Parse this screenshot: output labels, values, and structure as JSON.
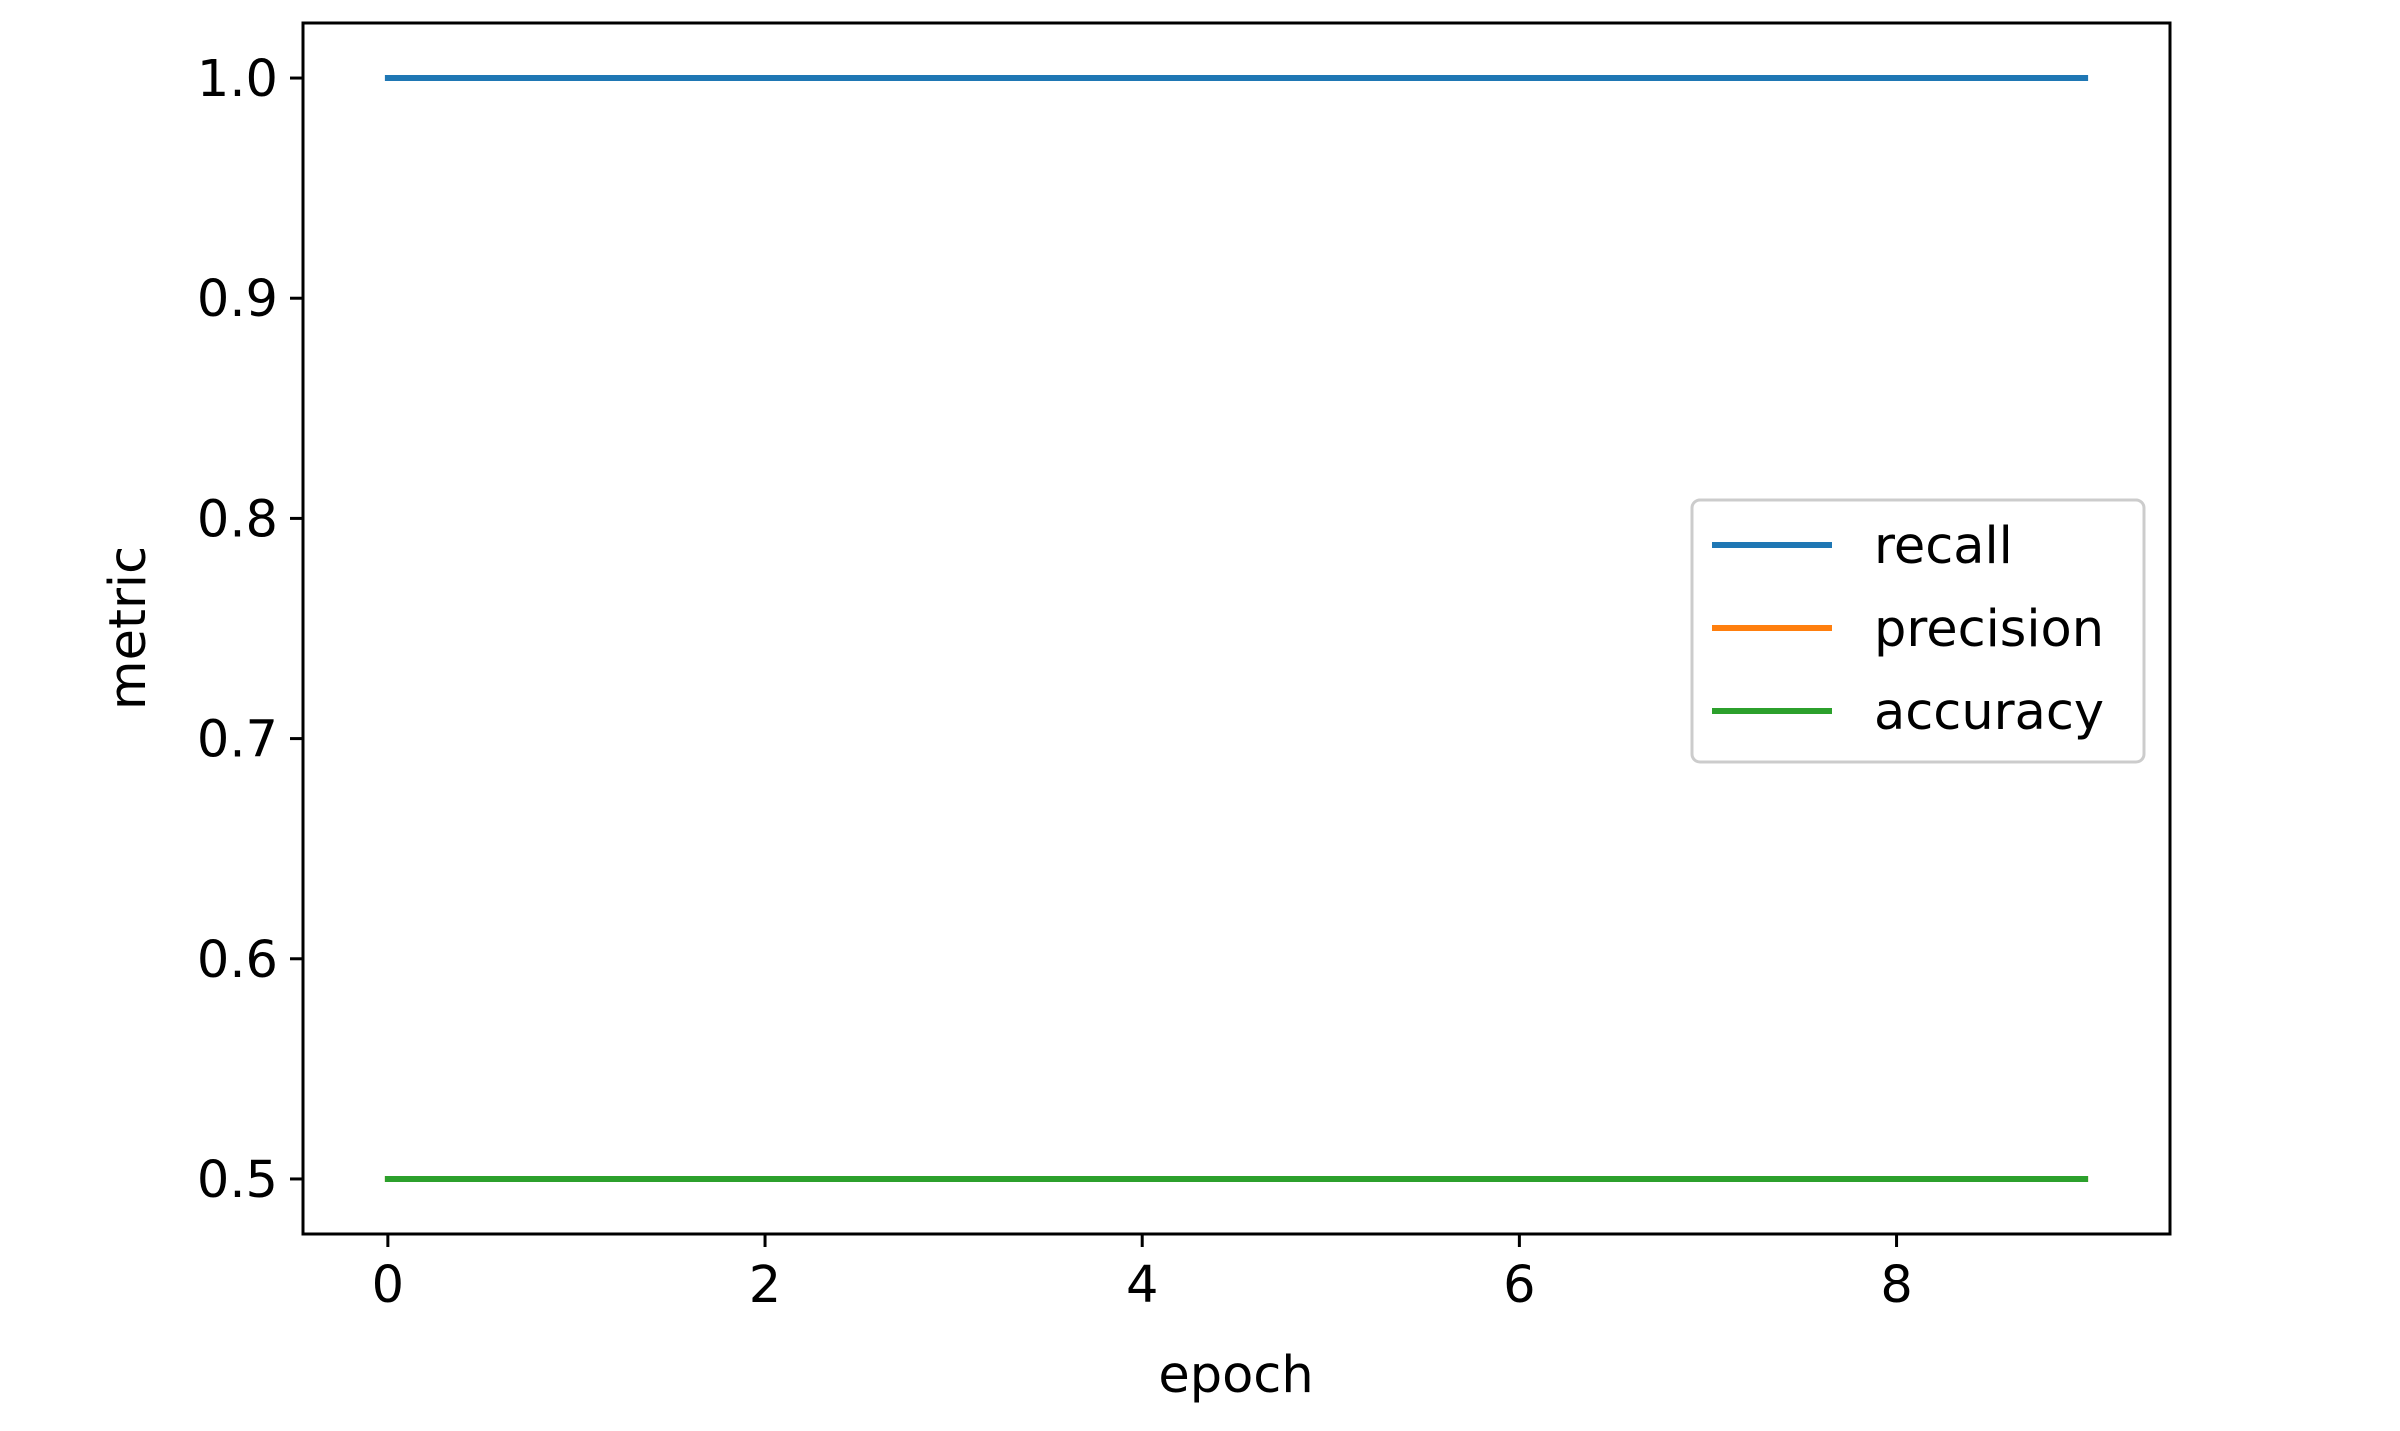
{
  "chart_data": {
    "type": "line",
    "title": "",
    "xlabel": "epoch",
    "ylabel": "metric",
    "x": [
      0,
      1,
      2,
      3,
      4,
      5,
      6,
      7,
      8,
      9
    ],
    "series": [
      {
        "name": "recall",
        "color": "#1f77b4",
        "values": [
          1.0,
          1.0,
          1.0,
          1.0,
          1.0,
          1.0,
          1.0,
          1.0,
          1.0,
          1.0
        ]
      },
      {
        "name": "precision",
        "color": "#ff7f0e",
        "values": [
          0.5,
          0.5,
          0.5,
          0.5,
          0.5,
          0.5,
          0.5,
          0.5,
          0.5,
          0.5
        ]
      },
      {
        "name": "accuracy",
        "color": "#2ca02c",
        "values": [
          0.5,
          0.5,
          0.5,
          0.5,
          0.5,
          0.5,
          0.5,
          0.5,
          0.5,
          0.5
        ]
      }
    ],
    "xlim": [
      -0.45,
      9.45
    ],
    "ylim": [
      0.475,
      1.025
    ],
    "xticks": [
      "0",
      "2",
      "4",
      "6",
      "8"
    ],
    "yticks": [
      "0.5",
      "0.6",
      "0.7",
      "0.8",
      "0.9",
      "1.0"
    ],
    "grid": false,
    "legend_position": "center-right"
  }
}
